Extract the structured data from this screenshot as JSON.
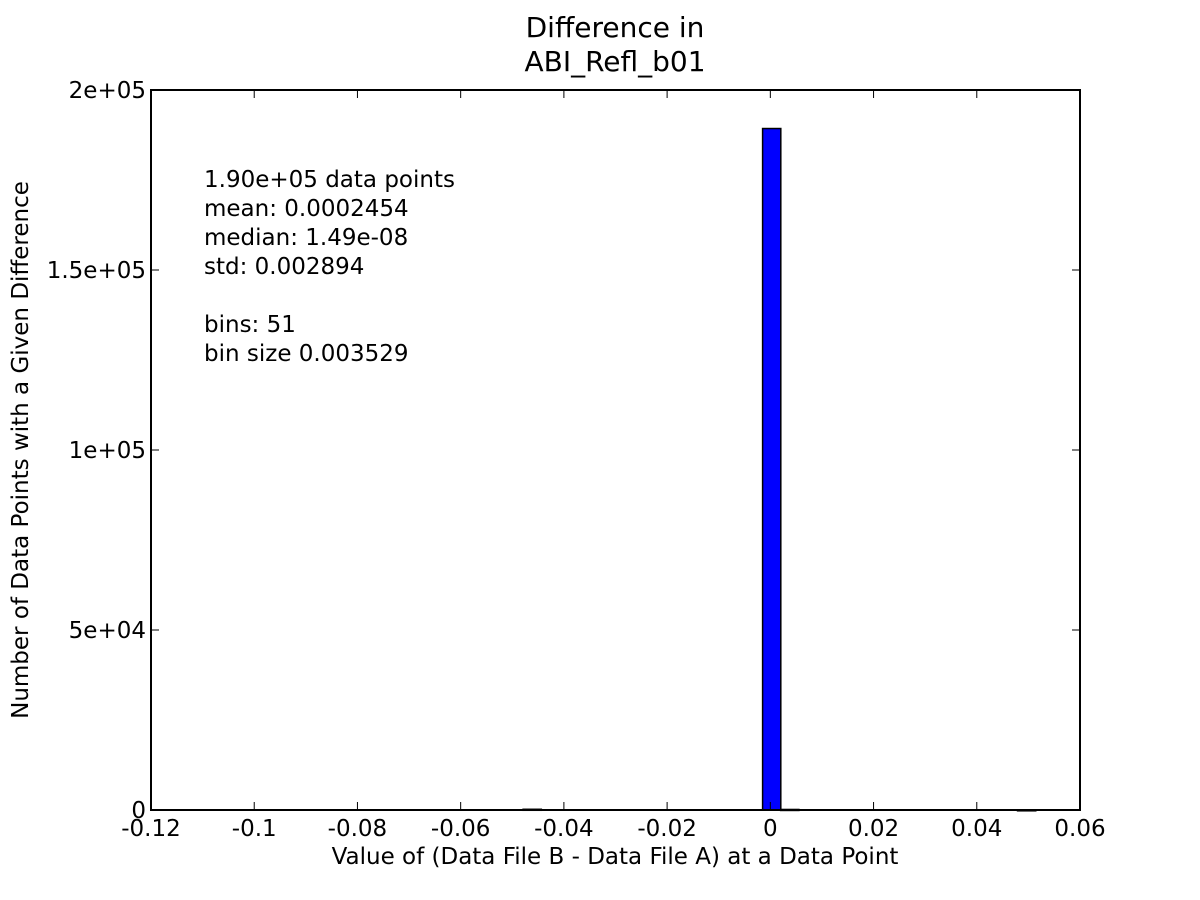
{
  "chart_data": {
    "type": "bar",
    "title_lines": [
      "Difference in",
      "ABI_Refl_b01"
    ],
    "xlabel": "Value of (Data File B - Data File A) at a Data Point",
    "ylabel": "Number of Data Points with a Given Difference",
    "xlim": [
      -0.12,
      0.06
    ],
    "ylim": [
      0,
      200000
    ],
    "x_tick_values": [
      -0.12,
      -0.1,
      -0.08,
      -0.06,
      -0.04,
      -0.02,
      0,
      0.02,
      0.04,
      0.06
    ],
    "x_tick_labels": [
      "-0.12",
      "-0.1",
      "-0.08",
      "-0.06",
      "-0.04",
      "-0.02",
      "0",
      "0.02",
      "0.04",
      "0.06"
    ],
    "y_tick_values": [
      0,
      50000,
      100000,
      150000,
      200000
    ],
    "y_tick_labels": [
      "0",
      "5e+04",
      "1e+05",
      "1.5e+05",
      "2e+05"
    ],
    "bar_color": "#0000ff",
    "bin_width": 0.003529,
    "bins": [
      {
        "x0": -0.0479,
        "value": 200
      },
      {
        "x0": -0.0015,
        "value": 189300
      },
      {
        "x0": 0.002,
        "value": 150
      },
      {
        "x0": 0.0479,
        "value": 50
      }
    ],
    "stats_lines": [
      "1.90e+05 data points",
      "mean: 0.0002454",
      "median: 1.49e-08",
      "std: 0.002894",
      "",
      "bins: 51",
      "bin size 0.003529"
    ],
    "grid": false,
    "legend": "none"
  }
}
